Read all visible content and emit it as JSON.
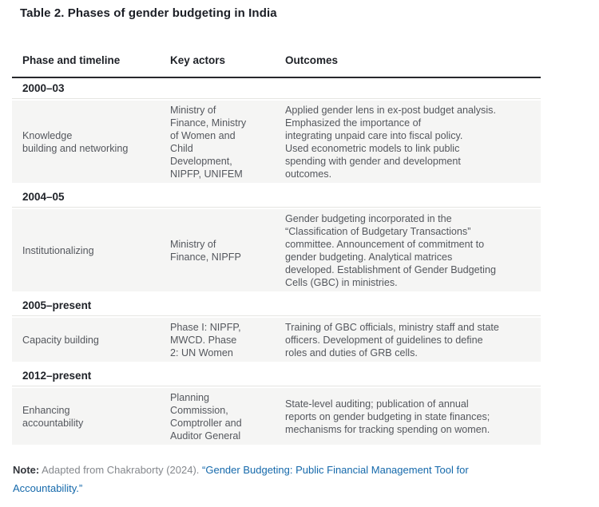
{
  "page": {
    "title": "Table 2. Phases of gender budgeting in India"
  },
  "table": {
    "columns": [
      "Phase and timeline",
      "Key actors",
      "Outcomes"
    ],
    "sections": [
      {
        "period": "2000–03",
        "phase": "Knowledge\nbuilding and networking",
        "actors": "Ministry of\nFinance, Ministry\nof Women and\nChild\nDevelopment,\nNIPFP, UNIFEM",
        "outcomes": "Applied gender lens in ex-post budget analysis.\nEmphasized the importance of\nintegrating unpaid care into fiscal policy.\nUsed econometric models to link public\nspending with gender and development\noutcomes."
      },
      {
        "period": "2004–05",
        "phase": "Institutionalizing",
        "actors": "Ministry of\nFinance, NIPFP",
        "outcomes": "Gender budgeting incorporated in the\n“Classification of Budgetary Transactions”\ncommittee. Announcement of commitment to\ngender budgeting. Analytical matrices\ndeveloped. Establishment of Gender Budgeting\nCells (GBC) in ministries."
      },
      {
        "period": "2005–present",
        "phase": "Capacity building",
        "actors": "Phase I: NIPFP,\nMWCD. Phase\n2: UN Women",
        "outcomes": "Training of GBC officials, ministry staff and state\nofficers. Development of guidelines to define\nroles and duties of GRB cells."
      },
      {
        "period": "2012–present",
        "phase": "Enhancing\naccountability",
        "actors": "Planning\nCommission,\nComptroller and\nAuditor General",
        "outcomes": "State-level auditing; publication of annual\nreports on gender budgeting in state finances;\nmechanisms for tracking spending on women."
      }
    ]
  },
  "note": {
    "label": "Note:",
    "text": "Adapted from Chakraborty (2024).",
    "link": "“Gender Budgeting: Public Financial Management Tool for Accountability.”"
  },
  "colors": {
    "link_blue": "#1569ab",
    "row_background": "#f5f5f4",
    "header_rule": "#27282c",
    "section_rule": "#e5e5e2",
    "body_text": "#54575d"
  }
}
